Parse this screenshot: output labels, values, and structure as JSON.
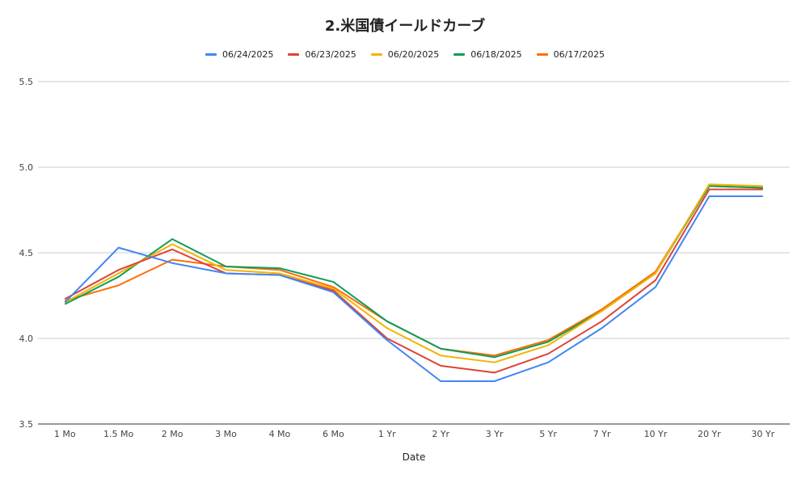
{
  "chart_data": {
    "type": "line",
    "title": "2.米国債イールドカーブ",
    "xlabel": "Date",
    "ylabel": "",
    "ylim": [
      3.5,
      5.5
    ],
    "yticks": [
      "3.5",
      "4.0",
      "4.5",
      "5.0",
      "5.5"
    ],
    "categories": [
      "1 Mo",
      "1.5 Mo",
      "2 Mo",
      "3 Mo",
      "4 Mo",
      "6 Mo",
      "1 Yr",
      "2 Yr",
      "3 Yr",
      "5 Yr",
      "7 Yr",
      "10 Yr",
      "20 Yr",
      "30 Yr"
    ],
    "legend_position": "top",
    "grid": true,
    "series": [
      {
        "name": "06/24/2025",
        "color": "#4285f4",
        "values": [
          4.21,
          4.53,
          4.44,
          4.38,
          4.37,
          4.27,
          3.99,
          3.75,
          3.75,
          3.86,
          4.06,
          4.3,
          4.83,
          4.83
        ]
      },
      {
        "name": "06/23/2025",
        "color": "#db4437",
        "values": [
          4.23,
          4.4,
          4.52,
          4.38,
          4.37,
          4.28,
          4.0,
          3.84,
          3.8,
          3.91,
          4.1,
          4.34,
          4.87,
          4.87
        ]
      },
      {
        "name": "06/20/2025",
        "color": "#f4b400",
        "values": [
          4.21,
          4.38,
          4.55,
          4.4,
          4.38,
          4.29,
          4.06,
          3.9,
          3.86,
          3.96,
          4.16,
          4.38,
          4.9,
          4.89
        ]
      },
      {
        "name": "06/18/2025",
        "color": "#0f9d58",
        "values": [
          4.2,
          4.36,
          4.58,
          4.42,
          4.41,
          4.33,
          4.1,
          3.94,
          3.89,
          3.98,
          4.16,
          4.38,
          4.89,
          4.88
        ]
      },
      {
        "name": "06/17/2025",
        "color": "#ff6d01",
        "values": [
          4.22,
          4.31,
          4.46,
          4.42,
          4.4,
          4.3,
          4.1,
          3.94,
          3.9,
          3.99,
          4.17,
          4.39,
          4.89,
          4.88
        ]
      }
    ]
  }
}
